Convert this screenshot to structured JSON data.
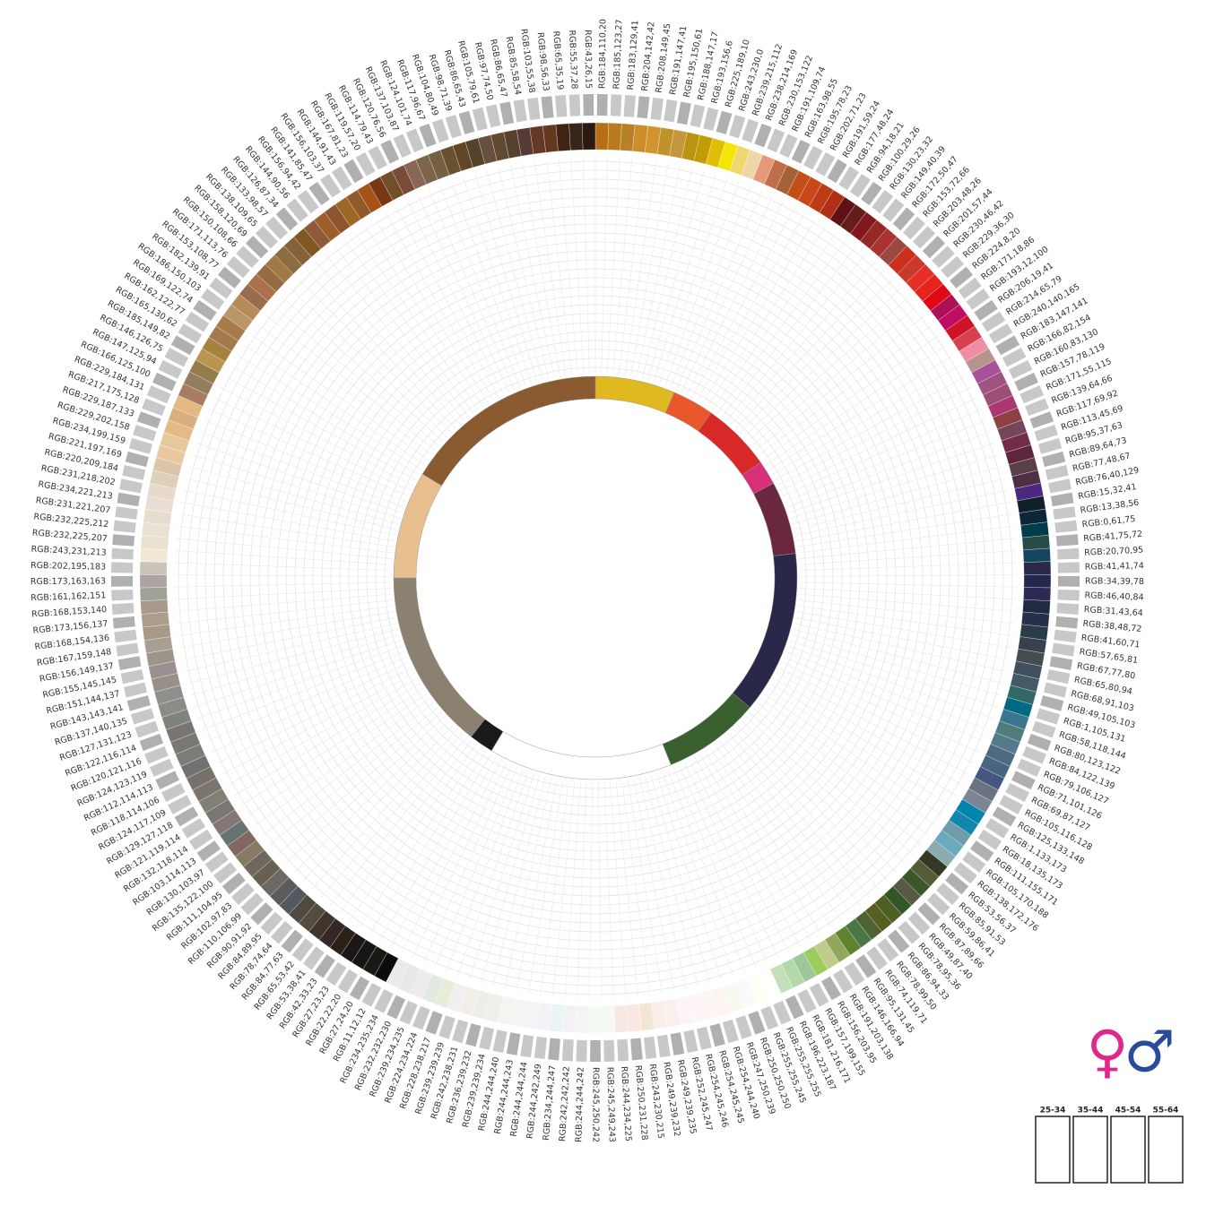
{
  "chart_data": {
    "type": "radial",
    "categories": [
      "RGB:184,110,20",
      "RGB:185,123,27",
      "RGB:183,129,41",
      "RGB:204,142,42",
      "RGB:208,149,45",
      "RGB:191,147,41",
      "RGB:195,150,61",
      "RGB:188,147,17",
      "RGB:193,156,6",
      "RGB:225,189,10",
      "RGB:243,230,0",
      "RGB:239,215,112",
      "RGB:238,214,169",
      "RGB:230,153,122",
      "RGB:191,109,74",
      "RGB:163,98,55",
      "RGB:195,78,23",
      "RGB:202,71,23",
      "RGB:191,59,24",
      "RGB:177,48,24",
      "RGB:94,18,21",
      "RGB:100,29,26",
      "RGB:130,23,32",
      "RGB:149,40,39",
      "RGB:172,50,47",
      "RGB:153,72,66",
      "RGB:203,48,26",
      "RGB:201,57,44",
      "RGB:230,46,42",
      "RGB:229,36,30",
      "RGB:224,8,20",
      "RGB:171,18,86",
      "RGB:193,12,100",
      "RGB:206,19,41",
      "RGB:214,65,79",
      "RGB:240,140,165",
      "RGB:183,147,141",
      "RGB:166,82,154",
      "RGB:160,83,130",
      "RGB:157,78,119",
      "RGB:171,55,115",
      "RGB:139,64,66",
      "RGB:117,69,92",
      "RGB:113,45,69",
      "RGB:95,37,63",
      "RGB:89,64,73",
      "RGB:77,48,67",
      "RGB:76,40,129",
      "RGB:15,32,41",
      "RGB:13,38,56",
      "RGB:0,61,75",
      "RGB:41,75,72",
      "RGB:20,70,95",
      "RGB:41,41,74",
      "RGB:34,39,78",
      "RGB:46,40,84",
      "RGB:31,43,64",
      "RGB:38,48,72",
      "RGB:41,60,71",
      "RGB:57,65,81",
      "RGB:67,77,80",
      "RGB:65,80,94",
      "RGB:68,91,103",
      "RGB:49,105,103",
      "RGB:1,105,131",
      "RGB:58,118,144",
      "RGB:80,123,122",
      "RGB:84,122,139",
      "RGB:79,106,127",
      "RGB:71,101,126",
      "RGB:69,87,127",
      "RGB:105,116,128",
      "RGB:125,133,148",
      "RGB:1,133,173",
      "RGB:18,135,173",
      "RGB:111,155,171",
      "RGB:105,170,188",
      "RGB:138,172,176",
      "RGB:53,56,37",
      "RGB:85,91,53",
      "RGB:59,86,41",
      "RGB:87,89,66",
      "RGB:49,87,40",
      "RGB:78,95,36",
      "RGB:86,94,33",
      "RGB:78,99,50",
      "RGB:74,119,71",
      "RGB:95,131,45",
      "RGB:146,166,94",
      "RGB:191,203,138",
      "RGB:156,203,95",
      "RGB:157,199,155",
      "RGB:181,216,171",
      "RGB:196,223,187",
      "RGB:255,255,255",
      "RGB:255,255,245",
      "RGB:250,250,250",
      "RGB:247,250,239",
      "RGB:254,244,240",
      "RGB:254,245,245",
      "RGB:254,245,246",
      "RGB:252,245,247",
      "RGB:249,239,235",
      "RGB:249,239,232",
      "RGB:243,230,215",
      "RGB:250,231,228",
      "RGB:244,234,225",
      "RGB:245,249,243",
      "RGB:245,250,242",
      "RGB:244,244,242",
      "RGB:242,242,242",
      "RGB:234,244,247",
      "RGB:244,242,249",
      "RGB:244,244,244",
      "RGB:244,244,243",
      "RGB:244,244,240",
      "RGB:239,239,234",
      "RGB:236,239,232",
      "RGB:242,238,231",
      "RGB:239,239,239",
      "RGB:228,238,217",
      "RGB:224,234,224",
      "RGB:239,234,235",
      "RGB:232,232,230",
      "RGB:234,235,234",
      "RGB:11,12,12",
      "RGB:27,24,20",
      "RGB:22,22,20",
      "RGB:27,23,23",
      "RGB:42,33,23",
      "RGB:53,38,41",
      "RGB:65,53,42",
      "RGB:84,77,63",
      "RGB:78,74,64",
      "RGB:84,89,95",
      "RGB:90,91,92",
      "RGB:110,106,99",
      "RGB:102,97,83",
      "RGB:111,104,95",
      "RGB:135,122,100",
      "RGB:130,103,97",
      "RGB:103,114,113",
      "RGB:132,118,114",
      "RGB:121,119,114",
      "RGB:129,127,118",
      "RGB:124,117,109",
      "RGB:118,114,106",
      "RGB:112,114,113",
      "RGB:124,123,119",
      "RGB:120,121,116",
      "RGB:122,116,114",
      "RGB:127,131,123",
      "RGB:137,140,135",
      "RGB:143,143,141",
      "RGB:151,144,137",
      "RGB:155,145,145",
      "RGB:156,149,137",
      "RGB:167,159,148",
      "RGB:168,154,136",
      "RGB:173,156,137",
      "RGB:168,153,140",
      "RGB:161,162,151",
      "RGB:173,163,163",
      "RGB:202,195,183",
      "RGB:243,231,213",
      "RGB:232,225,207",
      "RGB:232,225,212",
      "RGB:231,221,207",
      "RGB:234,221,213",
      "RGB:231,218,202",
      "RGB:220,209,184",
      "RGB:221,197,169",
      "RGB:234,199,159",
      "RGB:229,202,158",
      "RGB:229,187,133",
      "RGB:217,175,128",
      "RGB:229,184,131",
      "RGB:166,125,100",
      "RGB:147,125,94",
      "RGB:146,126,75",
      "RGB:185,149,82",
      "RGB:165,130,62",
      "RGB:162,122,77",
      "RGB:169,122,74",
      "RGB:186,150,103",
      "RGB:182,139,91",
      "RGB:153,108,77",
      "RGB:171,113,76",
      "RGB:150,108,66",
      "RGB:158,120,69",
      "RGB:138,109,65",
      "RGB:133,98,57",
      "RGB:126,87,34",
      "RGB:144,90,56",
      "RGB:156,94,42",
      "RGB:141,85,47",
      "RGB:156,103,37",
      "RGB:144,91,43",
      "RGB:167,81,23",
      "RGB:119,57,20",
      "RGB:114,79,43",
      "RGB:120,76,56",
      "RGB:137,103,87",
      "RGB:124,101,74",
      "RGB:117,96,67",
      "RGB:104,80,49",
      "RGB:98,71,39",
      "RGB:86,65,43",
      "RGB:105,79,61",
      "RGB:97,74,50",
      "RGB:86,65,47",
      "RGB:85,58,54",
      "RGB:103,55,38",
      "RGB:98,56,33",
      "RGB:65,35,19",
      "RGB:55,37,28",
      "RGB:43,26,15"
    ],
    "legend_symbols": [
      "♀",
      "♂"
    ],
    "age_groups": [
      "25-34",
      "35-44",
      "45-54",
      "55-64"
    ]
  }
}
